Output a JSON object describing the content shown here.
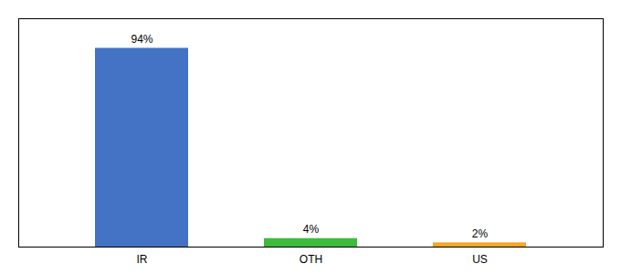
{
  "chart_data": {
    "type": "bar",
    "categories": [
      "IR",
      "OTH",
      "US"
    ],
    "values": [
      94,
      4,
      2
    ],
    "value_labels": [
      "94%",
      "4%",
      "2%"
    ],
    "colors": [
      "#4472c4",
      "#3dbb3d",
      "#f5a623"
    ],
    "ylim": [
      0,
      108
    ],
    "data_labels": true,
    "tick_labels": "x",
    "grid": false
  }
}
